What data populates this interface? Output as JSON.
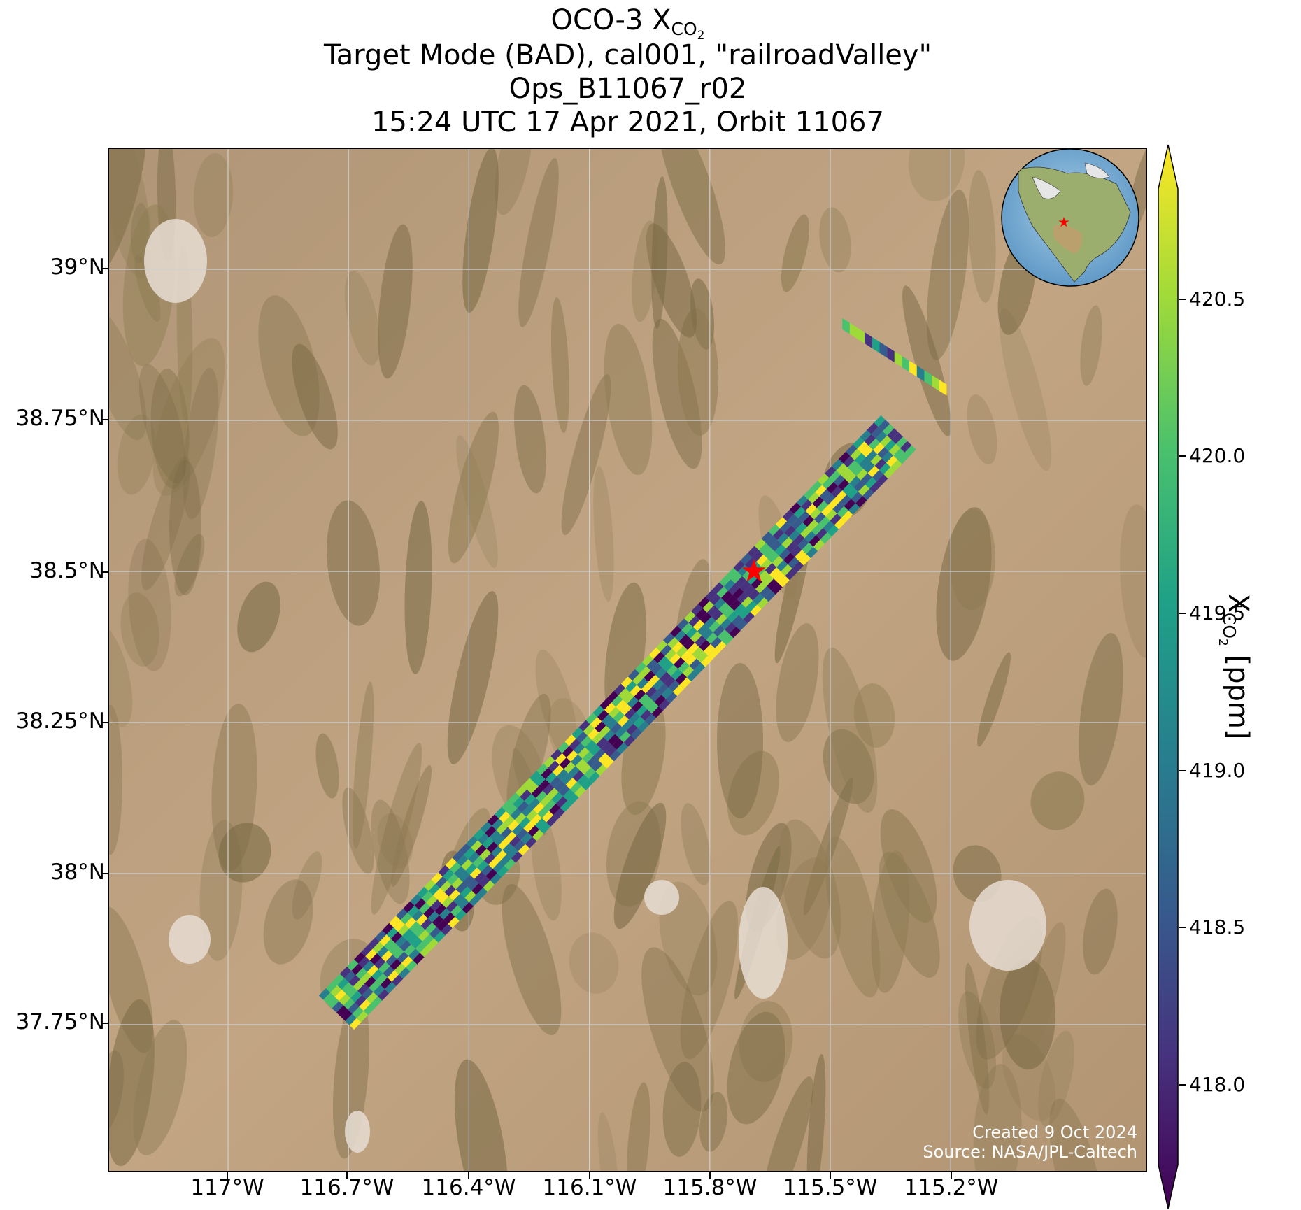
{
  "title": {
    "line1_prefix": "OCO-3 X",
    "line1_sub": "CO",
    "line1_subsub": "2",
    "line2": "Target Mode (BAD), cal001, \"railroadValley\"",
    "line3": "Ops_B11067_r02",
    "line4": "15:24 UTC 17 Apr 2021, Orbit 11067"
  },
  "axes": {
    "lat_labels": [
      "39°N",
      "38.75°N",
      "38.5°N",
      "38.25°N",
      "38°N",
      "37.75°N"
    ],
    "lon_labels": [
      "117°W",
      "116.7°W",
      "116.4°W",
      "116.1°W",
      "115.8°W",
      "115.5°W",
      "115.2°W"
    ]
  },
  "colorbar": {
    "label_prefix": "X",
    "label_sub": "CO",
    "label_subsub": "2",
    "label_suffix": " [ppm]",
    "ticks": [
      "420.5",
      "420.0",
      "419.5",
      "419.0",
      "418.5",
      "418.0"
    ],
    "extend": "both",
    "colormap": "viridis",
    "colors": [
      "#440154",
      "#46327e",
      "#365c8d",
      "#277f8e",
      "#1fa187",
      "#4ac16d",
      "#a0da39",
      "#fde725"
    ]
  },
  "credits": {
    "created": "Created 9 Oct 2024",
    "source": "Source: NASA/JPL-Caltech"
  },
  "chart_data": {
    "type": "heatmap",
    "map_type": "satellite XCO2 swath over satellite imagery",
    "lat_ticks": [
      39.0,
      38.75,
      38.5,
      38.25,
      38.0,
      37.75
    ],
    "lon_ticks": [
      -117.0,
      -116.7,
      -116.4,
      -116.1,
      -115.8,
      -115.5,
      -115.2
    ],
    "lat_range": [
      37.54,
      39.24
    ],
    "lon_range": [
      -117.33,
      -114.88
    ],
    "target_marker": {
      "lat": 38.5,
      "lon": -115.69,
      "symbol": "red star"
    },
    "color_range_ppm": [
      417.8,
      420.8
    ],
    "colorbar_ticks": [
      418.0,
      418.5,
      419.0,
      419.5,
      420.0,
      420.5
    ],
    "inset": "globe centered on North America with red star marking target",
    "swath": {
      "approx_extent": "from ~37.74°N,116.75°W to ~38.92°N,115.30°W",
      "xco2_range_ppm": [
        417.8,
        420.8
      ]
    },
    "grid": true
  }
}
